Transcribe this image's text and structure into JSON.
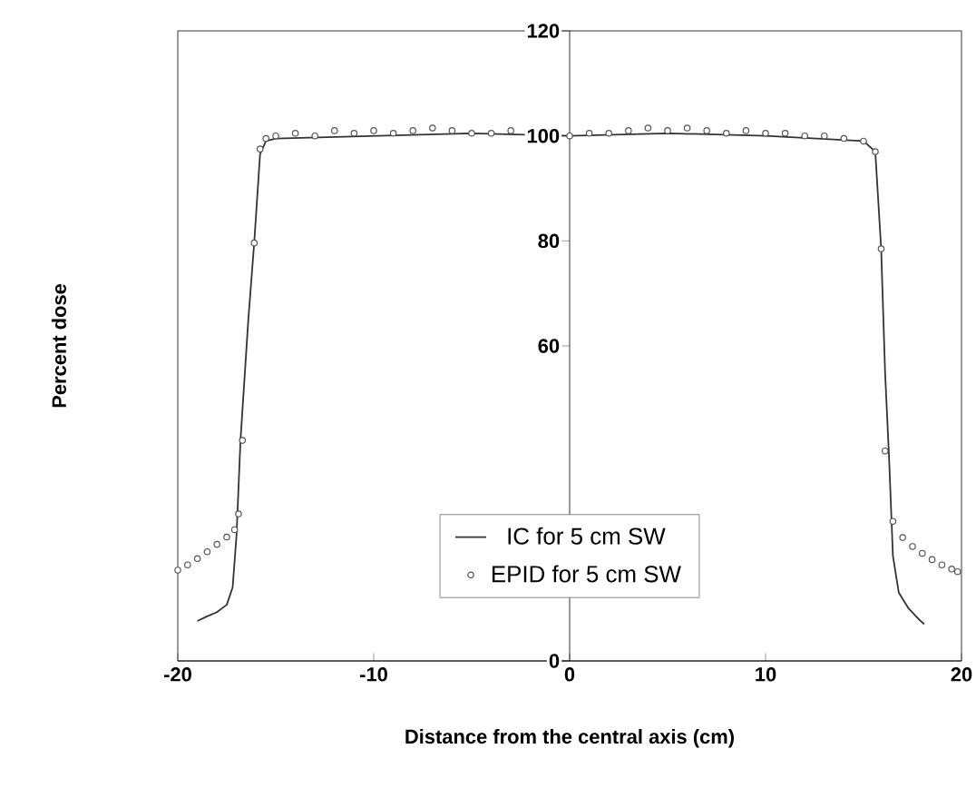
{
  "chart_data": {
    "type": "line",
    "xlabel": "Distance from the central axis (cm)",
    "ylabel": "Percent dose",
    "xlim": [
      -20,
      20
    ],
    "xticks": [
      -20,
      -10,
      0,
      10,
      20
    ],
    "ylim": [
      0,
      120
    ],
    "yticks": [
      0,
      60,
      80,
      100,
      120
    ],
    "legend": "bottom",
    "grid": false,
    "series": [
      {
        "name": "IC for 5 cm SW",
        "color": "#333333",
        "marker": "none",
        "line_style": "solid",
        "x": [
          -19,
          -18.5,
          -18,
          -17.5,
          -17.2,
          -17,
          -16.8,
          -16.4,
          -16.1,
          -15.8,
          -15.5,
          -15,
          -10,
          -5,
          0,
          5,
          10,
          15,
          15.6,
          15.9,
          16.1,
          16.3,
          16.5,
          16.8,
          17.3,
          17.8,
          18.1
        ],
        "values": [
          7.6,
          8.5,
          9.3,
          10.7,
          14,
          24,
          42,
          65,
          79.6,
          96.5,
          99,
          99.5,
          100,
          100.5,
          100,
          100.5,
          100,
          99,
          97,
          78.5,
          55,
          39,
          20,
          13,
          10,
          8,
          7
        ]
      },
      {
        "name": "EPID for 5 cm SW",
        "type": "scatter",
        "color": "#555555",
        "marker": "circle",
        "x": [
          -20,
          -19.5,
          -19,
          -18.5,
          -18,
          -17.5,
          -17.1,
          -16.9,
          -16.7,
          -16.1,
          -15.8,
          -15.5,
          -15,
          -14,
          -13,
          -12,
          -11,
          -10,
          -9,
          -8,
          -7,
          -6,
          -5,
          -4,
          -3,
          0,
          1,
          2,
          3,
          4,
          5,
          6,
          7,
          8,
          9,
          10,
          11,
          12,
          13,
          14,
          15,
          15.6,
          15.9,
          16.1,
          16.5,
          17,
          17.5,
          18,
          18.5,
          19,
          19.5,
          19.8
        ],
        "values": [
          17.3,
          18.3,
          19.5,
          20.8,
          22.2,
          23.6,
          25,
          28,
          42,
          79.6,
          97.5,
          99.5,
          100,
          100.5,
          100,
          101,
          100.5,
          101,
          100.5,
          101,
          101.5,
          101,
          100.5,
          100.5,
          101,
          100,
          100.5,
          100.5,
          101,
          101.5,
          101,
          101.5,
          101,
          100.5,
          101,
          100.5,
          100.5,
          100,
          100,
          99.5,
          99,
          97,
          78.5,
          40,
          26.6,
          23.5,
          21.8,
          20.5,
          19.3,
          18.3,
          17.5,
          17
        ]
      }
    ]
  }
}
